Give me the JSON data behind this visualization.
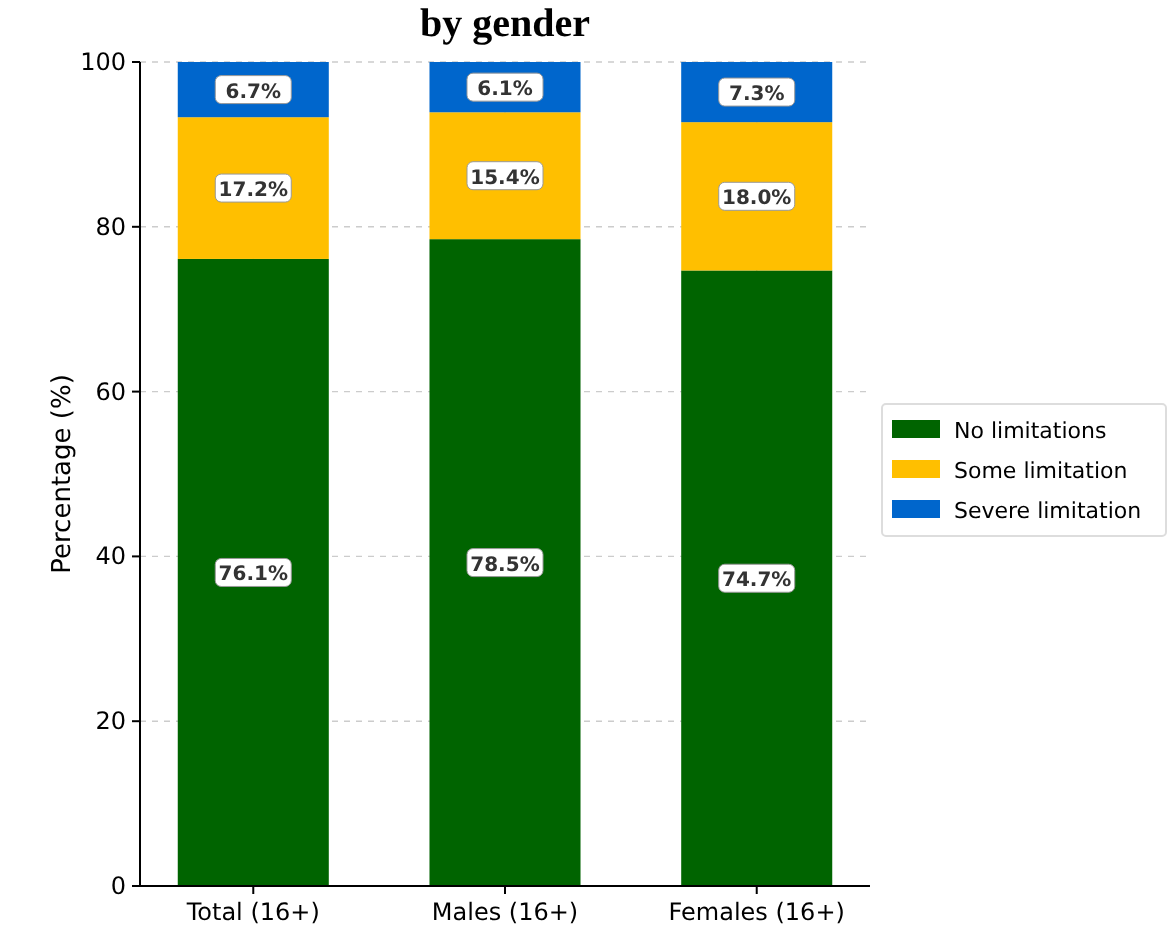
{
  "chart_data": {
    "type": "bar",
    "title": "by gender",
    "ylabel": "Percentage (%)",
    "categories": [
      "Total (16+)",
      "Males (16+)",
      "Females (16+)"
    ],
    "stacked": true,
    "series": [
      {
        "name": "No limitations",
        "color": "#006400",
        "values": [
          76.1,
          78.5,
          74.7
        ],
        "value_labels": [
          "76.1%",
          "78.5%",
          "74.7%"
        ]
      },
      {
        "name": "Some limitation",
        "color": "#ffbf00",
        "values": [
          17.2,
          15.4,
          18.0
        ],
        "value_labels": [
          "17.2%",
          "15.4%",
          "18.0%"
        ]
      },
      {
        "name": "Severe limitation",
        "color": "#0066cc",
        "values": [
          6.7,
          6.1,
          7.3
        ],
        "value_labels": [
          "6.7%",
          "6.1%",
          "7.3%"
        ]
      }
    ],
    "ylim": [
      0,
      100
    ],
    "yticks": [
      0,
      20,
      40,
      60,
      80,
      100
    ],
    "grid": true,
    "legend": "right"
  }
}
